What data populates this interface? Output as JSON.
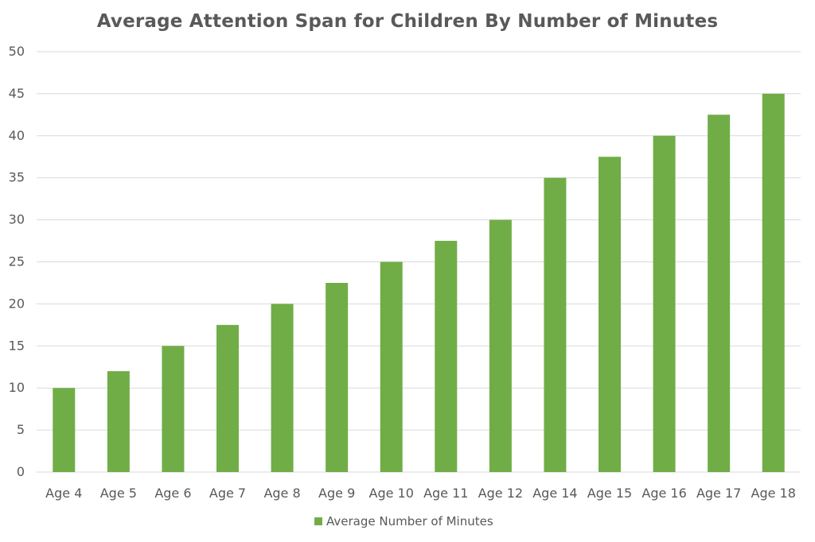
{
  "chart_data": {
    "type": "bar",
    "title": "Average Attention Span for Children By Number of Minutes",
    "categories": [
      "Age 4",
      "Age 5",
      "Age 6",
      "Age 7",
      "Age 8",
      "Age 9",
      "Age 10",
      "Age 11",
      "Age 12",
      "Age 14",
      "Age 15",
      "Age 16",
      "Age 17",
      "Age 18"
    ],
    "series": [
      {
        "name": "Average Number of Minutes",
        "values": [
          10,
          12,
          15,
          17.5,
          20,
          22.5,
          25,
          27.5,
          30,
          35,
          37.5,
          40,
          42.5,
          45
        ],
        "color": "#70ad47"
      }
    ],
    "xlabel": "",
    "ylabel": "",
    "ylim": [
      0,
      50
    ],
    "yticks": [
      0,
      5,
      10,
      15,
      20,
      25,
      30,
      35,
      40,
      45,
      50
    ],
    "grid": true,
    "legend_position": "bottom",
    "gridline_color": "#d9d9d9"
  }
}
